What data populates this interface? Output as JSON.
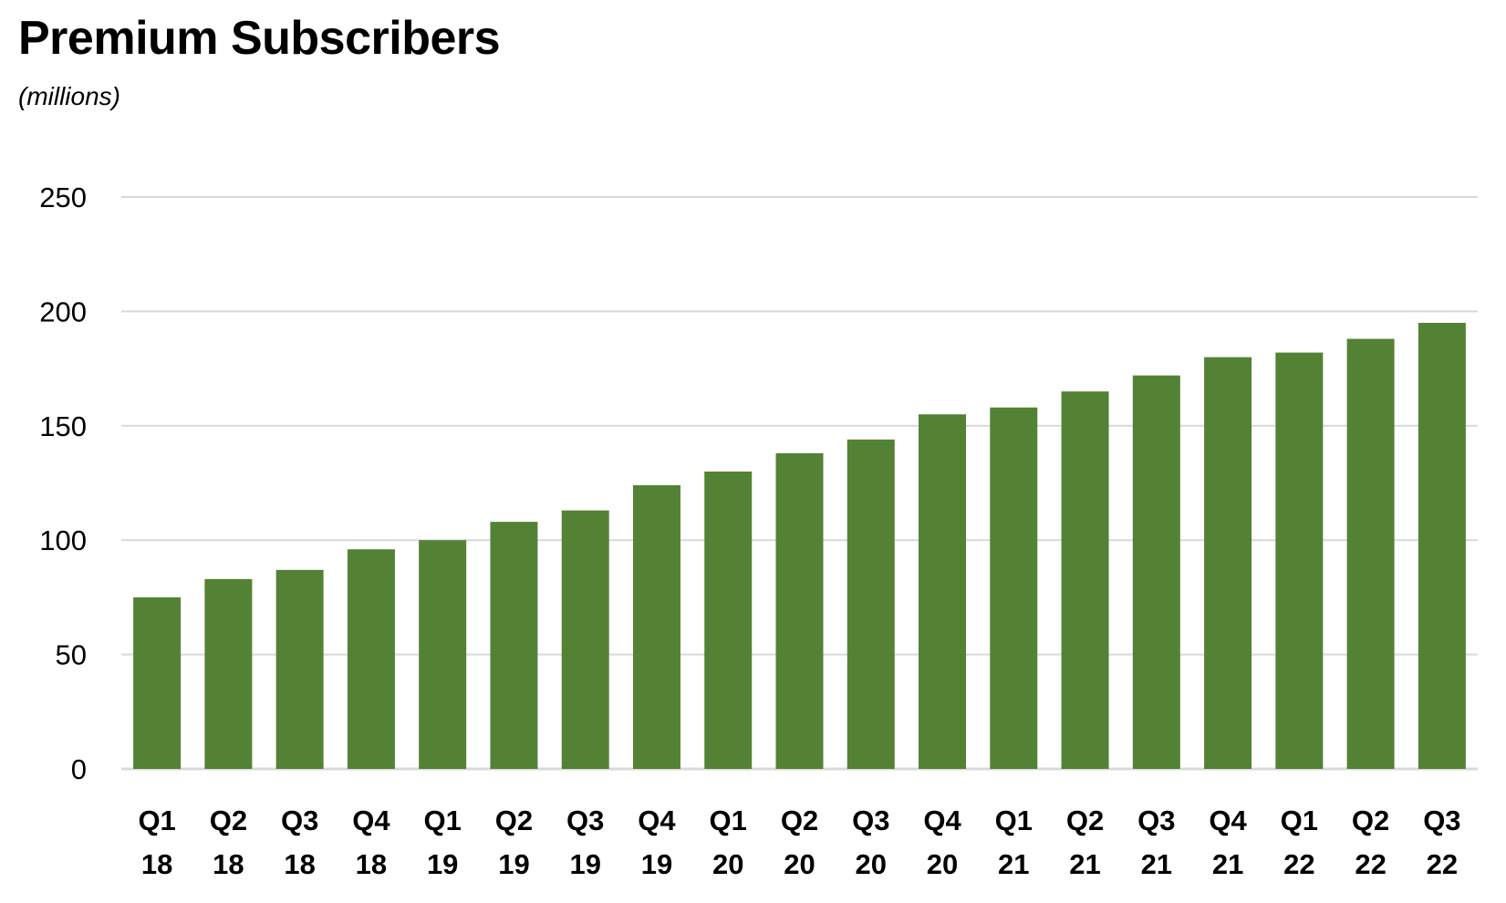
{
  "chart_data": {
    "type": "bar",
    "title": "Premium Subscribers",
    "subtitle": "(millions)",
    "xlabel": "",
    "ylabel": "",
    "categories": [
      "Q1 18",
      "Q2 18",
      "Q3 18",
      "Q4 18",
      "Q1 19",
      "Q2 19",
      "Q3 19",
      "Q4 19",
      "Q1 20",
      "Q2 20",
      "Q3 20",
      "Q4 20",
      "Q1 21",
      "Q2 21",
      "Q3 21",
      "Q4 21",
      "Q1 22",
      "Q2 22",
      "Q3 22"
    ],
    "values": [
      75,
      83,
      87,
      96,
      100,
      108,
      113,
      124,
      130,
      138,
      144,
      155,
      158,
      165,
      172,
      180,
      182,
      188,
      195
    ],
    "ylim": [
      0,
      250
    ],
    "yticks": [
      0,
      50,
      100,
      150,
      200,
      250
    ],
    "grid": true,
    "legend": "none",
    "bar_color": "#548235",
    "grid_color": "#d9d9d9"
  }
}
